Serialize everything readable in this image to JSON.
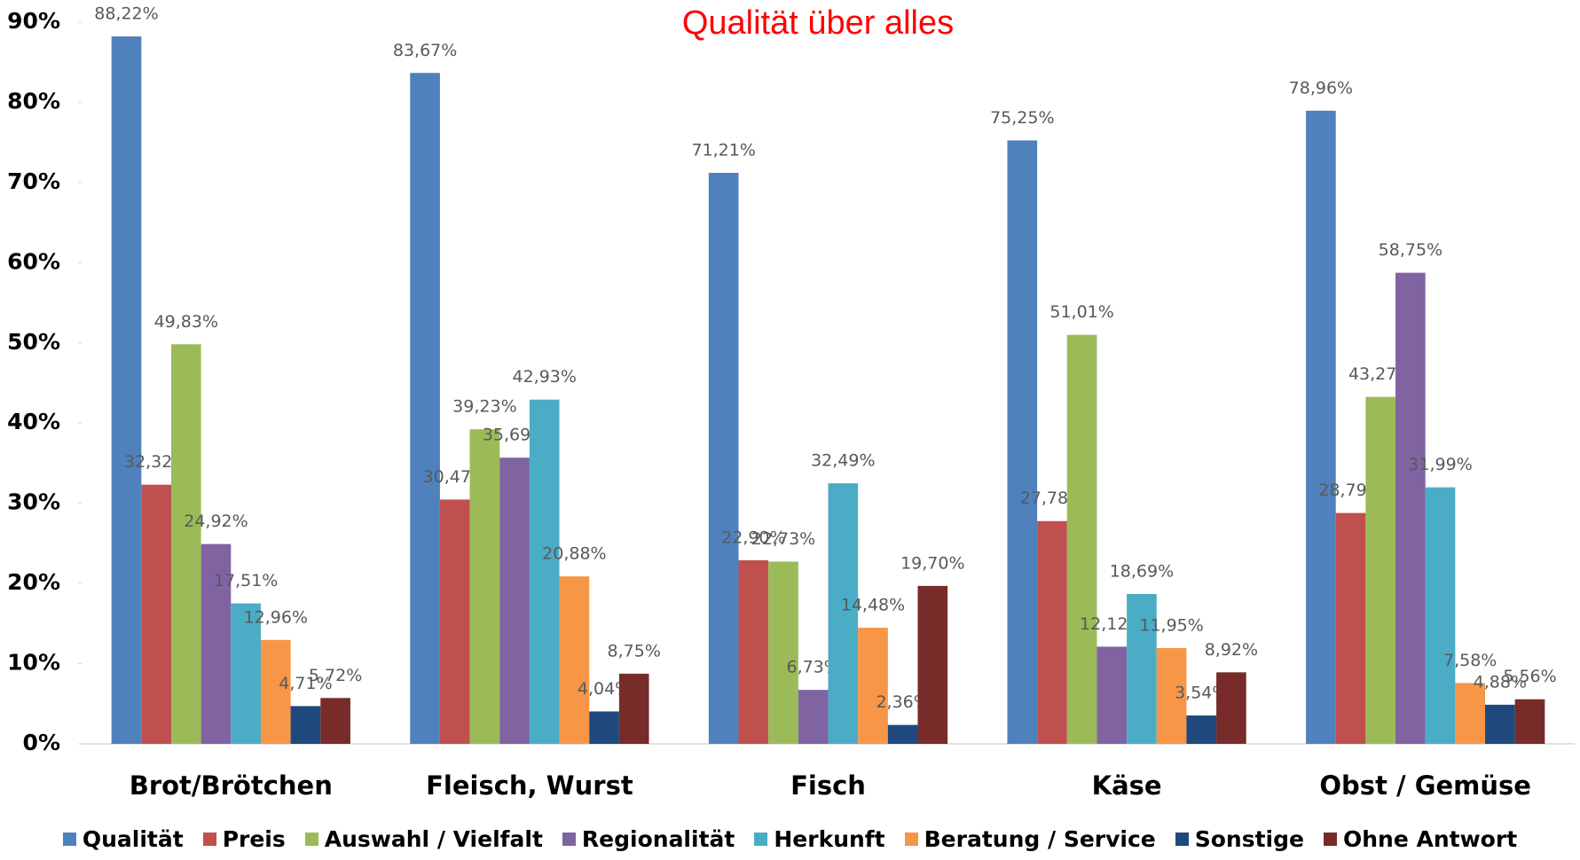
{
  "chart_data": {
    "type": "bar",
    "title": "Qualität über alles",
    "categories": [
      "Brot/Brötchen",
      "Fleisch, Wurst",
      "Fisch",
      "Käse",
      "Obst / Gemüse"
    ],
    "series": [
      {
        "name": "Qualität",
        "color": "#4f81bd",
        "values": [
          88.22,
          83.67,
          71.21,
          75.25,
          78.96
        ],
        "value_labels": [
          "88,22%",
          "83,67%",
          "71,21%",
          "75,25%",
          "78,96%"
        ]
      },
      {
        "name": "Preis",
        "color": "#c0504d",
        "values": [
          32.32,
          30.47,
          22.9,
          27.78,
          28.79
        ],
        "value_labels": [
          "32,32%",
          "30,47%",
          "22,90%",
          "27,78%",
          "28,79%"
        ]
      },
      {
        "name": "Auswahl / Vielfalt",
        "color": "#9bbb59",
        "values": [
          49.83,
          39.23,
          22.73,
          51.01,
          43.27
        ],
        "value_labels": [
          "49,83%",
          "39,23%",
          "22,73%",
          "51,01%",
          "43,27%"
        ]
      },
      {
        "name": "Regionalität",
        "color": "#8064a2",
        "values": [
          24.92,
          35.69,
          6.73,
          12.12,
          58.75
        ],
        "value_labels": [
          "24,92%",
          "35,69%",
          "6,73%",
          "12,12%",
          "58,75%"
        ]
      },
      {
        "name": "Herkunft",
        "color": "#4bacc6",
        "values": [
          17.51,
          42.93,
          32.49,
          18.69,
          31.99
        ],
        "value_labels": [
          "17,51%",
          "42,93%",
          "32,49%",
          "18,69%",
          "31,99%"
        ]
      },
      {
        "name": "Beratung / Service",
        "color": "#f79646",
        "values": [
          12.96,
          20.88,
          14.48,
          11.95,
          7.58
        ],
        "value_labels": [
          "12,96%",
          "20,88%",
          "14,48%",
          "11,95%",
          "7,58%"
        ]
      },
      {
        "name": "Sonstige",
        "color": "#1f497d",
        "values": [
          4.71,
          4.04,
          2.36,
          3.54,
          4.88
        ],
        "value_labels": [
          "4,71%",
          "4,04%",
          "2,36%",
          "3,54%",
          "4,88%"
        ]
      },
      {
        "name": "Ohne Antwort",
        "color": "#772c2a",
        "values": [
          5.72,
          8.75,
          19.7,
          8.92,
          5.56
        ],
        "value_labels": [
          "5,72%",
          "8,75%",
          "19,70%",
          "8,92%",
          "5,56%"
        ]
      }
    ],
    "ylim": [
      0,
      90
    ],
    "yticks": [
      {
        "value": 0,
        "label": "0%"
      },
      {
        "value": 10,
        "label": "10%"
      },
      {
        "value": 20,
        "label": "20%"
      },
      {
        "value": 30,
        "label": "30%"
      },
      {
        "value": 40,
        "label": "40%"
      },
      {
        "value": 50,
        "label": "50%"
      },
      {
        "value": 60,
        "label": "60%"
      },
      {
        "value": 70,
        "label": "70%"
      },
      {
        "value": 80,
        "label": "80%"
      },
      {
        "value": 90,
        "label": "90%"
      }
    ],
    "grid": false,
    "legend": "bottom",
    "title_color": "#ff0000"
  }
}
